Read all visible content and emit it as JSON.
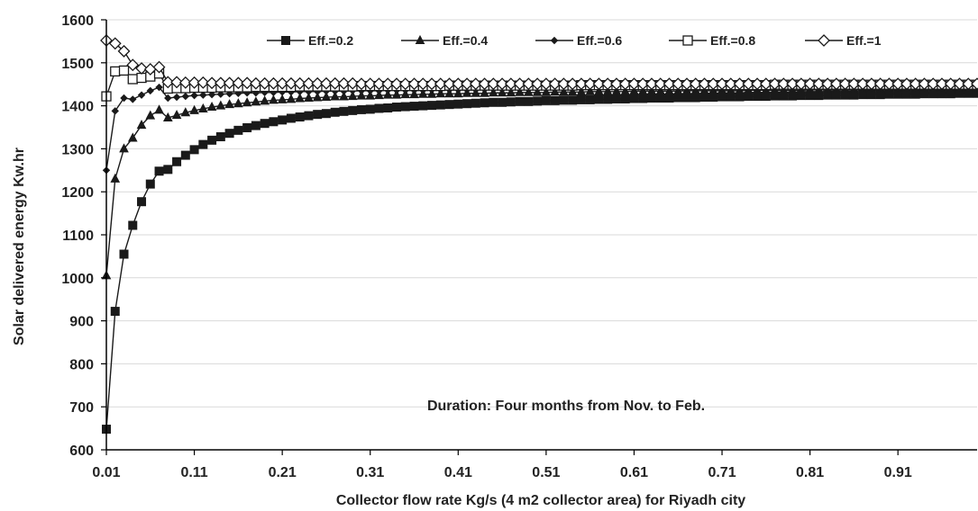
{
  "chart_data": {
    "type": "line",
    "title": "",
    "xlabel": "Collector flow rate Kg/s (4 m2 collector area) for Riyadh city",
    "ylabel": "Solar delivered energy Kw.hr",
    "xlim": [
      0.01,
      1.0
    ],
    "ylim": [
      600,
      1600
    ],
    "x_ticks": [
      "0.01",
      "0.11",
      "0.21",
      "0.31",
      "0.41",
      "0.51",
      "0.61",
      "0.71",
      "0.81",
      "0.91"
    ],
    "x_tick_values": [
      0.01,
      0.11,
      0.21,
      0.31,
      0.41,
      0.51,
      0.61,
      0.71,
      0.81,
      0.91
    ],
    "y_ticks": [
      "600",
      "700",
      "800",
      "900",
      "1000",
      "1100",
      "1200",
      "1300",
      "1400",
      "1500",
      "1600"
    ],
    "y_tick_values": [
      600,
      700,
      800,
      900,
      1000,
      1100,
      1200,
      1300,
      1400,
      1500,
      1600
    ],
    "grid": "horizontal",
    "legend_position": "top",
    "annotation": "Duration: Four months from Nov. to Feb.",
    "series": [
      {
        "name": "Eff.=0.2",
        "marker": "filled-square",
        "x": [
          0.01,
          0.02,
          0.03,
          0.04,
          0.05,
          0.06,
          0.07,
          0.08,
          0.09,
          0.1,
          0.11,
          0.12,
          0.13,
          0.14,
          0.15,
          0.16,
          0.17,
          0.18,
          0.19,
          0.2,
          0.21,
          0.22,
          0.23,
          0.24,
          0.25,
          0.26,
          0.27,
          0.28,
          0.29,
          0.3,
          0.31,
          0.32,
          0.33,
          0.34,
          0.35,
          0.36,
          0.37,
          0.38,
          0.39,
          0.4,
          0.41,
          0.42,
          0.43,
          0.44,
          0.45,
          0.46,
          0.47,
          0.48,
          0.49,
          0.5,
          0.51,
          0.52,
          0.53,
          0.54,
          0.55,
          0.56,
          0.57,
          0.58,
          0.59,
          0.6,
          0.61,
          0.62,
          0.63,
          0.64,
          0.65,
          0.66,
          0.67,
          0.68,
          0.69,
          0.7,
          0.71,
          0.72,
          0.73,
          0.74,
          0.75,
          0.76,
          0.77,
          0.78,
          0.79,
          0.8,
          0.81,
          0.82,
          0.83,
          0.84,
          0.85,
          0.86,
          0.87,
          0.88,
          0.89,
          0.9,
          0.91,
          0.92,
          0.93,
          0.94,
          0.95,
          0.96,
          0.97,
          0.98,
          0.99,
          1.0
        ],
        "values": [
          648,
          922,
          1055,
          1122,
          1177,
          1218,
          1248,
          1252,
          1270,
          1285,
          1298,
          1310,
          1320,
          1328,
          1336,
          1343,
          1349,
          1354,
          1359,
          1363,
          1367,
          1371,
          1374,
          1377,
          1380,
          1382,
          1385,
          1387,
          1389,
          1391,
          1392,
          1394,
          1395,
          1397,
          1398,
          1399,
          1400,
          1401,
          1402,
          1403,
          1404,
          1405,
          1406,
          1407,
          1408,
          1408,
          1409,
          1410,
          1410,
          1411,
          1412,
          1412,
          1413,
          1413,
          1414,
          1414,
          1415,
          1415,
          1416,
          1416,
          1417,
          1417,
          1418,
          1418,
          1418,
          1419,
          1419,
          1419,
          1420,
          1420,
          1421,
          1421,
          1421,
          1422,
          1422,
          1422,
          1423,
          1423,
          1423,
          1424,
          1424,
          1424,
          1425,
          1425,
          1425,
          1425,
          1426,
          1426,
          1426,
          1427,
          1427,
          1427,
          1427,
          1428,
          1428,
          1428,
          1428,
          1429,
          1429,
          1429
        ]
      },
      {
        "name": "Eff.=0.4",
        "marker": "filled-triangle",
        "x": [
          0.01,
          0.02,
          0.03,
          0.04,
          0.05,
          0.06,
          0.07,
          0.08,
          0.09,
          0.1,
          0.11,
          0.12,
          0.13,
          0.14,
          0.15,
          0.16,
          0.17,
          0.18,
          0.19,
          0.2,
          0.21,
          0.22,
          0.23,
          0.24,
          0.25,
          0.26,
          0.27,
          0.28,
          0.29,
          0.3,
          0.31,
          0.32,
          0.33,
          0.34,
          0.35,
          0.36,
          0.37,
          0.38,
          0.39,
          0.4,
          0.41,
          0.42,
          0.43,
          0.44,
          0.45,
          0.46,
          0.47,
          0.48,
          0.49,
          0.5,
          0.51,
          0.52,
          0.53,
          0.54,
          0.55,
          0.56,
          0.57,
          0.58,
          0.59,
          0.6,
          0.61,
          0.62,
          0.63,
          0.64,
          0.65,
          0.66,
          0.67,
          0.68,
          0.69,
          0.7,
          0.71,
          0.72,
          0.73,
          0.74,
          0.75,
          0.76,
          0.77,
          0.78,
          0.79,
          0.8,
          0.81,
          0.82,
          0.83,
          0.84,
          0.85,
          0.86,
          0.87,
          0.88,
          0.89,
          0.9,
          0.91,
          0.92,
          0.93,
          0.94,
          0.95,
          0.96,
          0.97,
          0.98,
          0.99,
          1.0
        ],
        "values": [
          1005,
          1230,
          1300,
          1325,
          1355,
          1377,
          1390,
          1372,
          1378,
          1384,
          1389,
          1393,
          1397,
          1400,
          1403,
          1405,
          1407,
          1409,
          1411,
          1413,
          1414,
          1415,
          1417,
          1418,
          1419,
          1420,
          1421,
          1421,
          1422,
          1423,
          1423,
          1424,
          1425,
          1425,
          1426,
          1426,
          1427,
          1427,
          1428,
          1428,
          1428,
          1429,
          1429,
          1429,
          1430,
          1430,
          1430,
          1431,
          1431,
          1431,
          1431,
          1432,
          1432,
          1432,
          1432,
          1433,
          1433,
          1433,
          1433,
          1433,
          1434,
          1434,
          1434,
          1434,
          1434,
          1434,
          1435,
          1435,
          1435,
          1435,
          1435,
          1435,
          1435,
          1436,
          1436,
          1436,
          1436,
          1436,
          1436,
          1436,
          1437,
          1437,
          1437,
          1437,
          1437,
          1437,
          1437,
          1437,
          1437,
          1438,
          1438,
          1438,
          1438,
          1438,
          1438,
          1438,
          1438,
          1438,
          1438,
          1439
        ]
      },
      {
        "name": "Eff.=0.6",
        "marker": "filled-diamond",
        "x": [
          0.01,
          0.02,
          0.03,
          0.04,
          0.05,
          0.06,
          0.07,
          0.08,
          0.09,
          0.1,
          0.11,
          0.12,
          0.13,
          0.14,
          0.15,
          0.16,
          0.17,
          0.18,
          0.19,
          0.2,
          0.21,
          0.22,
          0.23,
          0.24,
          0.25,
          0.26,
          0.27,
          0.28,
          0.29,
          0.3,
          0.31,
          0.32,
          0.33,
          0.34,
          0.35,
          0.36,
          0.37,
          0.38,
          0.39,
          0.4,
          0.41,
          0.42,
          0.43,
          0.44,
          0.45,
          0.46,
          0.47,
          0.48,
          0.49,
          0.5,
          0.51,
          0.52,
          0.53,
          0.54,
          0.55,
          0.56,
          0.57,
          0.58,
          0.59,
          0.6,
          0.61,
          0.62,
          0.63,
          0.64,
          0.65,
          0.66,
          0.67,
          0.68,
          0.69,
          0.7,
          0.71,
          0.72,
          0.73,
          0.74,
          0.75,
          0.76,
          0.77,
          0.78,
          0.79,
          0.8,
          0.81,
          0.82,
          0.83,
          0.84,
          0.85,
          0.86,
          0.87,
          0.88,
          0.89,
          0.9,
          0.91,
          0.92,
          0.93,
          0.94,
          0.95,
          0.96,
          0.97,
          0.98,
          0.99,
          1.0
        ],
        "values": [
          1250,
          1388,
          1418,
          1415,
          1425,
          1435,
          1443,
          1418,
          1420,
          1422,
          1424,
          1425,
          1426,
          1427,
          1428,
          1429,
          1430,
          1430,
          1431,
          1431,
          1432,
          1432,
          1433,
          1433,
          1433,
          1434,
          1434,
          1434,
          1435,
          1435,
          1435,
          1435,
          1436,
          1436,
          1436,
          1436,
          1436,
          1437,
          1437,
          1437,
          1437,
          1437,
          1437,
          1438,
          1438,
          1438,
          1438,
          1438,
          1438,
          1438,
          1439,
          1439,
          1439,
          1439,
          1439,
          1439,
          1439,
          1439,
          1439,
          1440,
          1440,
          1440,
          1440,
          1440,
          1440,
          1440,
          1440,
          1440,
          1440,
          1440,
          1441,
          1441,
          1441,
          1441,
          1441,
          1441,
          1441,
          1441,
          1441,
          1441,
          1441,
          1441,
          1441,
          1442,
          1442,
          1442,
          1442,
          1442,
          1442,
          1442,
          1442,
          1442,
          1442,
          1442,
          1442,
          1442,
          1442,
          1442,
          1442,
          1442
        ]
      },
      {
        "name": "Eff.=0.8",
        "marker": "open-square",
        "x": [
          0.01,
          0.02,
          0.03,
          0.04,
          0.05,
          0.06,
          0.07,
          0.08,
          0.09,
          0.1,
          0.11,
          0.12,
          0.13,
          0.14,
          0.15,
          0.16,
          0.17,
          0.18,
          0.19,
          0.2,
          0.21,
          0.22,
          0.23,
          0.24,
          0.25,
          0.26,
          0.27,
          0.28,
          0.29,
          0.3,
          0.31,
          0.32,
          0.33,
          0.34,
          0.35,
          0.36,
          0.37,
          0.38,
          0.39,
          0.4,
          0.41,
          0.42,
          0.43,
          0.44,
          0.45,
          0.46,
          0.47,
          0.48,
          0.49,
          0.5,
          0.51,
          0.52,
          0.53,
          0.54,
          0.55,
          0.56,
          0.57,
          0.58,
          0.59,
          0.6,
          0.61,
          0.62,
          0.63,
          0.64,
          0.65,
          0.66,
          0.67,
          0.68,
          0.69,
          0.7,
          0.71,
          0.72,
          0.73,
          0.74,
          0.75,
          0.76,
          0.77,
          0.78,
          0.79,
          0.8,
          0.81,
          0.82,
          0.83,
          0.84,
          0.85,
          0.86,
          0.87,
          0.88,
          0.89,
          0.9,
          0.91,
          0.92,
          0.93,
          0.94,
          0.95,
          0.96,
          0.97,
          0.98,
          0.99,
          1.0
        ],
        "values": [
          1422,
          1480,
          1482,
          1462,
          1465,
          1468,
          1475,
          1440,
          1441,
          1441,
          1442,
          1442,
          1442,
          1443,
          1443,
          1443,
          1443,
          1444,
          1444,
          1444,
          1444,
          1444,
          1445,
          1445,
          1445,
          1445,
          1445,
          1445,
          1445,
          1446,
          1446,
          1446,
          1446,
          1446,
          1446,
          1446,
          1446,
          1446,
          1446,
          1447,
          1447,
          1447,
          1447,
          1447,
          1447,
          1447,
          1447,
          1447,
          1447,
          1447,
          1447,
          1447,
          1447,
          1447,
          1448,
          1448,
          1448,
          1448,
          1448,
          1448,
          1448,
          1448,
          1448,
          1448,
          1448,
          1448,
          1448,
          1448,
          1448,
          1448,
          1448,
          1448,
          1448,
          1448,
          1448,
          1448,
          1449,
          1449,
          1449,
          1449,
          1449,
          1449,
          1449,
          1449,
          1449,
          1449,
          1449,
          1449,
          1449,
          1449,
          1449,
          1449,
          1449,
          1449,
          1449,
          1449,
          1449,
          1449,
          1449,
          1449
        ]
      },
      {
        "name": "Eff.=1",
        "marker": "open-diamond",
        "x": [
          0.01,
          0.02,
          0.03,
          0.04,
          0.05,
          0.06,
          0.07,
          0.08,
          0.09,
          0.1,
          0.11,
          0.12,
          0.13,
          0.14,
          0.15,
          0.16,
          0.17,
          0.18,
          0.19,
          0.2,
          0.21,
          0.22,
          0.23,
          0.24,
          0.25,
          0.26,
          0.27,
          0.28,
          0.29,
          0.3,
          0.31,
          0.32,
          0.33,
          0.34,
          0.35,
          0.36,
          0.37,
          0.38,
          0.39,
          0.4,
          0.41,
          0.42,
          0.43,
          0.44,
          0.45,
          0.46,
          0.47,
          0.48,
          0.49,
          0.5,
          0.51,
          0.52,
          0.53,
          0.54,
          0.55,
          0.56,
          0.57,
          0.58,
          0.59,
          0.6,
          0.61,
          0.62,
          0.63,
          0.64,
          0.65,
          0.66,
          0.67,
          0.68,
          0.69,
          0.7,
          0.71,
          0.72,
          0.73,
          0.74,
          0.75,
          0.76,
          0.77,
          0.78,
          0.79,
          0.8,
          0.81,
          0.82,
          0.83,
          0.84,
          0.85,
          0.86,
          0.87,
          0.88,
          0.89,
          0.9,
          0.91,
          0.92,
          0.93,
          0.94,
          0.95,
          0.96,
          0.97,
          0.98,
          0.99,
          1.0
        ],
        "values": [
          1552,
          1545,
          1527,
          1495,
          1487,
          1485,
          1490,
          1455,
          1455,
          1454,
          1454,
          1454,
          1453,
          1453,
          1453,
          1453,
          1453,
          1452,
          1452,
          1452,
          1452,
          1452,
          1452,
          1452,
          1452,
          1452,
          1452,
          1452,
          1452,
          1451,
          1451,
          1451,
          1451,
          1451,
          1451,
          1451,
          1451,
          1451,
          1451,
          1451,
          1451,
          1451,
          1451,
          1451,
          1451,
          1451,
          1451,
          1451,
          1451,
          1451,
          1451,
          1451,
          1451,
          1451,
          1451,
          1451,
          1451,
          1451,
          1451,
          1451,
          1451,
          1451,
          1451,
          1451,
          1451,
          1451,
          1451,
          1451,
          1451,
          1451,
          1451,
          1451,
          1451,
          1451,
          1451,
          1451,
          1451,
          1451,
          1451,
          1451,
          1451,
          1451,
          1451,
          1451,
          1451,
          1451,
          1451,
          1451,
          1451,
          1451,
          1451,
          1451,
          1451,
          1451,
          1451,
          1451,
          1451,
          1451,
          1451,
          1451
        ]
      }
    ]
  },
  "colors": {
    "line": "#1a1a1a",
    "grid": "#d9d9d9",
    "axis": "#000000",
    "marker_fill": "#1a1a1a",
    "marker_open_fill": "#ffffff"
  }
}
